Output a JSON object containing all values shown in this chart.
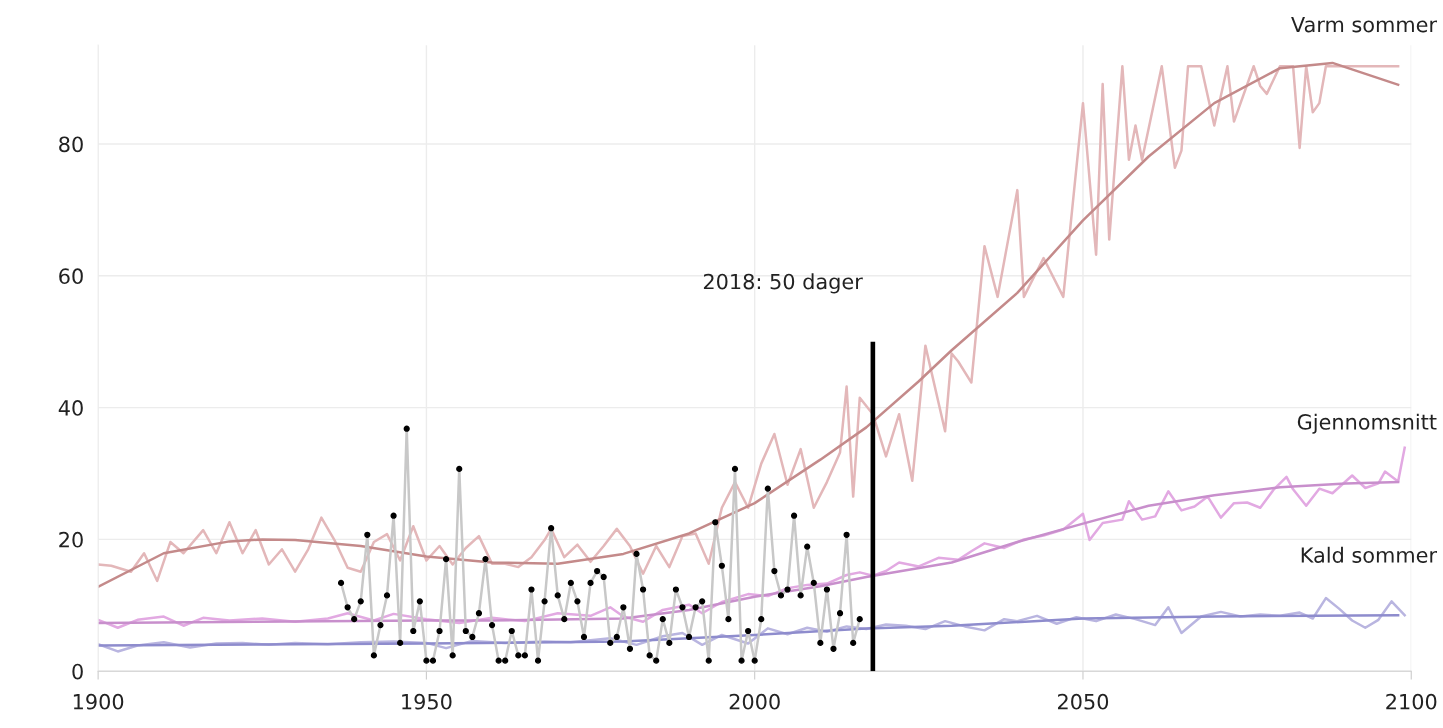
{
  "chart_data": {
    "type": "line",
    "xlim": [
      1900,
      2100
    ],
    "xticks": [
      1900,
      1950,
      2000,
      2050,
      2100
    ],
    "ylim": [
      0,
      95
    ],
    "yticks": [
      0,
      20,
      40,
      60,
      80
    ],
    "grid": true,
    "legend": false,
    "annotations": [
      {
        "text": "2018: 50 dager",
        "x": 2018,
        "y": 50
      }
    ],
    "series": [
      {
        "color": "#e3b7b9",
        "x": [
          1900,
          1902,
          1905,
          1907,
          1909,
          1911,
          1913,
          1916,
          1918,
          1920,
          1922,
          1924,
          1926,
          1928,
          1930,
          1932,
          1934,
          1936,
          1938,
          1940,
          1942,
          1944,
          1946,
          1948,
          1950,
          1952,
          1954,
          1956,
          1958,
          1960,
          1962,
          1964,
          1966,
          1968,
          1969,
          1971,
          1973,
          1975,
          1977,
          1979,
          1981,
          1983,
          1985,
          1987,
          1989,
          1991,
          1993,
          1995,
          1997,
          1999,
          2001,
          2003,
          2005,
          2007,
          2009,
          2011,
          2013,
          2014,
          2015,
          2016,
          2018,
          2020,
          2022,
          2024,
          2026,
          2029,
          2030,
          2031,
          2033,
          2035,
          2037,
          2040,
          2041,
          2044,
          2047,
          2050,
          2052,
          2053,
          2054,
          2056,
          2057,
          2058,
          2059,
          2062,
          2064,
          2065,
          2066,
          2068,
          2070,
          2072,
          2073,
          2076,
          2077,
          2078,
          2080,
          2082,
          2083,
          2084,
          2085,
          2086,
          2087,
          2092,
          2098
        ],
        "values": [
          16.2,
          16,
          15.1,
          17.9,
          13.7,
          19.6,
          17.9,
          21.4,
          17.9,
          22.6,
          17.9,
          21.4,
          16.2,
          18.5,
          15.1,
          18.5,
          23.3,
          19.9,
          15.7,
          15.1,
          19.6,
          20.8,
          16.8,
          22,
          16.8,
          19,
          16.2,
          18.7,
          20.5,
          16.3,
          16.3,
          15.8,
          17.3,
          19.9,
          21.6,
          17.3,
          19.2,
          16.6,
          19,
          21.6,
          19,
          14.8,
          19,
          15.8,
          20.5,
          20.9,
          16.3,
          24.8,
          28.7,
          24.8,
          31.5,
          36,
          28.3,
          33.7,
          24.8,
          28.7,
          33.2,
          43.2,
          26.5,
          41.5,
          39,
          32.6,
          39,
          28.9,
          49.4,
          36.4,
          48.2,
          47,
          43.8,
          64.5,
          56.8,
          73,
          56.8,
          62.7,
          56.8,
          86.2,
          63.2,
          89.1,
          65.5,
          91.8,
          77.6,
          82.8,
          77.6,
          91.8,
          76.4,
          79,
          91.8,
          91.8,
          82.8,
          91.8,
          83.4,
          91.8,
          88.8,
          87.6,
          91.8,
          91.8,
          79.4,
          91.8,
          84.8,
          86.2,
          91.8,
          91.8,
          91.8
        ]
      },
      {
        "name": "Varm sommer",
        "color": "#c48a8a",
        "x": [
          1900,
          1910,
          1920,
          1925,
          1930,
          1940,
          1950,
          1960,
          1970,
          1980,
          1990,
          2000,
          2010,
          2017,
          2025,
          2030,
          2040,
          2050,
          2060,
          2070,
          2080,
          2088,
          2098
        ],
        "values": [
          12.8,
          17.9,
          19.7,
          20,
          19.9,
          19,
          17.4,
          16.5,
          16.3,
          17.8,
          20.9,
          25.5,
          32.1,
          37,
          44,
          48.7,
          57.4,
          68.4,
          78.1,
          86.2,
          91.5,
          92.3,
          89
        ]
      },
      {
        "color": "#e2a9e2",
        "x": [
          1900,
          1903,
          1906,
          1910,
          1913,
          1916,
          1920,
          1925,
          1930,
          1935,
          1938,
          1942,
          1945,
          1950,
          1955,
          1960,
          1965,
          1970,
          1975,
          1978,
          1980,
          1983,
          1986,
          1990,
          1992,
          1995,
          1999,
          2002,
          2005,
          2008,
          2011,
          2014,
          2016,
          2018,
          2020,
          2022,
          2025,
          2028,
          2031,
          2033,
          2035,
          2038,
          2041,
          2044,
          2047,
          2050,
          2051,
          2053,
          2056,
          2057,
          2059,
          2061,
          2063,
          2065,
          2067,
          2069,
          2071,
          2073,
          2075,
          2077,
          2079,
          2081,
          2082,
          2084,
          2086,
          2088,
          2091,
          2093,
          2095,
          2096,
          2098,
          2099
        ],
        "values": [
          7.8,
          6.6,
          7.8,
          8.3,
          6.9,
          8.1,
          7.7,
          8,
          7.5,
          8,
          8.8,
          7.7,
          8.7,
          7.9,
          7.3,
          8.1,
          7.6,
          8.8,
          8.4,
          9.7,
          8.3,
          7.5,
          9.3,
          10.1,
          8.8,
          10.5,
          11.7,
          11.4,
          12.6,
          13.1,
          13.3,
          14.6,
          15,
          14.5,
          15.2,
          16.5,
          15.9,
          17.2,
          16.9,
          18.2,
          19.4,
          18.7,
          20,
          20.6,
          21.5,
          23.9,
          19.9,
          22.5,
          23,
          25.8,
          23,
          23.5,
          27.3,
          24.4,
          25,
          26.5,
          23.3,
          25.5,
          25.6,
          24.8,
          27.5,
          29.5,
          27.6,
          25.1,
          27.7,
          27,
          29.7,
          27.8,
          28.5,
          30.3,
          28.8,
          33.9
        ]
      },
      {
        "name": "Gjennomsnitt",
        "color": "#c88fcc",
        "x": [
          1900,
          1950,
          1960,
          1980,
          1990,
          2000,
          2010,
          2017,
          2030,
          2040,
          2050,
          2060,
          2070,
          2080,
          2090,
          2098
        ],
        "values": [
          7.3,
          7.7,
          7.7,
          8,
          9.3,
          11.3,
          12.9,
          14.3,
          16.5,
          19.6,
          22.4,
          25.1,
          26.7,
          27.9,
          28.5,
          28.7
        ]
      },
      {
        "color": "#b9b5e0",
        "x": [
          1900,
          1903,
          1906,
          1910,
          1914,
          1918,
          1922,
          1926,
          1930,
          1935,
          1940,
          1945,
          1950,
          1953,
          1957,
          1962,
          1968,
          1972,
          1978,
          1982,
          1986,
          1989,
          1992,
          1995,
          1999,
          2002,
          2005,
          2008,
          2011,
          2014,
          2017,
          2020,
          2023,
          2026,
          2029,
          2032,
          2035,
          2038,
          2040,
          2043,
          2046,
          2049,
          2052,
          2055,
          2058,
          2061,
          2063,
          2065,
          2068,
          2071,
          2074,
          2077,
          2080,
          2083,
          2085,
          2087,
          2089,
          2091,
          2093,
          2095,
          2097,
          2099
        ],
        "values": [
          4.1,
          3,
          3.9,
          4.4,
          3.6,
          4.2,
          4.3,
          4,
          4.3,
          4.1,
          4.4,
          4.5,
          4.3,
          3.5,
          4.6,
          4.3,
          4.5,
          4.4,
          5,
          4,
          5.3,
          5.8,
          4,
          5.5,
          4.2,
          6.5,
          5.6,
          6.6,
          6,
          6.8,
          6.4,
          7.1,
          6.9,
          6.4,
          7.6,
          6.8,
          6.2,
          7.9,
          7.6,
          8.4,
          7.2,
          8.2,
          7.6,
          8.6,
          7.9,
          7,
          9.7,
          5.8,
          8.3,
          9,
          8.3,
          8.6,
          8.4,
          8.9,
          8,
          11.1,
          9.5,
          7.7,
          6.6,
          7.8,
          10.6,
          8.5
        ]
      },
      {
        "name": "Kald sommer",
        "color": "#8e8ccd",
        "x": [
          1900,
          1950,
          1980,
          2000,
          2017,
          2030,
          2050,
          2070,
          2098
        ],
        "values": [
          3.9,
          4.2,
          4.5,
          5.5,
          6.5,
          6.9,
          8,
          8.3,
          8.5
        ]
      },
      {
        "color": "#c8c8c8",
        "x": [
          1937,
          1938,
          1939,
          1940,
          1941,
          1942,
          1943,
          1944,
          1945,
          1946,
          1947,
          1948,
          1949,
          1950,
          1951,
          1952,
          1953,
          1954,
          1955,
          1956,
          1957,
          1958,
          1959,
          1960,
          1961,
          1962,
          1963,
          1964,
          1965,
          1966,
          1967,
          1968,
          1969,
          1970,
          1971,
          1972,
          1973,
          1974,
          1975,
          1976,
          1977,
          1978,
          1979,
          1980,
          1981,
          1982,
          1983,
          1984,
          1985,
          1986,
          1987,
          1988,
          1989,
          1990,
          1991,
          1992,
          1993,
          1994,
          1995,
          1996,
          1997,
          1998,
          1999,
          2000,
          2001,
          2002,
          2003,
          2004,
          2005,
          2006,
          2007,
          2008,
          2009,
          2010,
          2011,
          2012,
          2013,
          2014,
          2015,
          2016
        ],
        "values": [
          13.4,
          9.7,
          7.9,
          10.6,
          20.7,
          2.4,
          7,
          11.5,
          23.6,
          4.3,
          36.8,
          6.1,
          10.6,
          1.6,
          1.6,
          6.1,
          17,
          2.4,
          30.7,
          6.1,
          5.2,
          8.8,
          17,
          7,
          1.6,
          1.6,
          6.1,
          2.4,
          2.4,
          12.4,
          1.6,
          10.6,
          21.7,
          11.5,
          7.9,
          13.4,
          10.6,
          5.2,
          13.4,
          15.2,
          14.3,
          4.3,
          5.2,
          9.7,
          3.4,
          17.8,
          12.4,
          2.4,
          1.6,
          7.9,
          4.3,
          12.4,
          9.7,
          5.2,
          9.7,
          10.6,
          1.6,
          22.6,
          16,
          7.9,
          30.7,
          1.6,
          6.1,
          1.6,
          7.9,
          27.7,
          15.2,
          11.5,
          12.4,
          23.6,
          11.5,
          18.9,
          13.4,
          4.3,
          12.4,
          3.4,
          8.8,
          20.7,
          4.3,
          7.9
        ]
      },
      {
        "type": "scatter",
        "color": "#000000",
        "marker": "circle",
        "x": [
          1937,
          1938,
          1939,
          1940,
          1941,
          1942,
          1943,
          1944,
          1945,
          1946,
          1947,
          1948,
          1949,
          1950,
          1951,
          1952,
          1953,
          1954,
          1955,
          1956,
          1957,
          1958,
          1959,
          1960,
          1961,
          1962,
          1963,
          1964,
          1965,
          1966,
          1967,
          1968,
          1969,
          1970,
          1971,
          1972,
          1973,
          1974,
          1975,
          1976,
          1977,
          1978,
          1979,
          1980,
          1981,
          1982,
          1983,
          1984,
          1985,
          1986,
          1987,
          1988,
          1989,
          1990,
          1991,
          1992,
          1993,
          1994,
          1995,
          1996,
          1997,
          1998,
          1999,
          2000,
          2001,
          2002,
          2003,
          2004,
          2005,
          2006,
          2007,
          2008,
          2009,
          2010,
          2011,
          2012,
          2013,
          2014,
          2015,
          2016
        ],
        "values": [
          13.4,
          9.7,
          7.9,
          10.6,
          20.7,
          2.4,
          7,
          11.5,
          23.6,
          4.3,
          36.8,
          6.1,
          10.6,
          1.6,
          1.6,
          6.1,
          17,
          2.4,
          30.7,
          6.1,
          5.2,
          8.8,
          17,
          7,
          1.6,
          1.6,
          6.1,
          2.4,
          2.4,
          12.4,
          1.6,
          10.6,
          21.7,
          11.5,
          7.9,
          13.4,
          10.6,
          5.2,
          13.4,
          15.2,
          14.3,
          4.3,
          5.2,
          9.7,
          3.4,
          17.8,
          12.4,
          2.4,
          1.6,
          7.9,
          4.3,
          12.4,
          9.7,
          5.2,
          9.7,
          10.6,
          1.6,
          22.6,
          16,
          7.9,
          30.7,
          1.6,
          6.1,
          1.6,
          7.9,
          27.7,
          15.2,
          11.5,
          12.4,
          23.6,
          11.5,
          18.9,
          13.4,
          4.3,
          12.4,
          3.4,
          8.8,
          20.7,
          4.3,
          7.9
        ]
      },
      {
        "type": "bar",
        "color": "#000000",
        "x": [
          2018
        ],
        "values": [
          50
        ]
      }
    ]
  }
}
